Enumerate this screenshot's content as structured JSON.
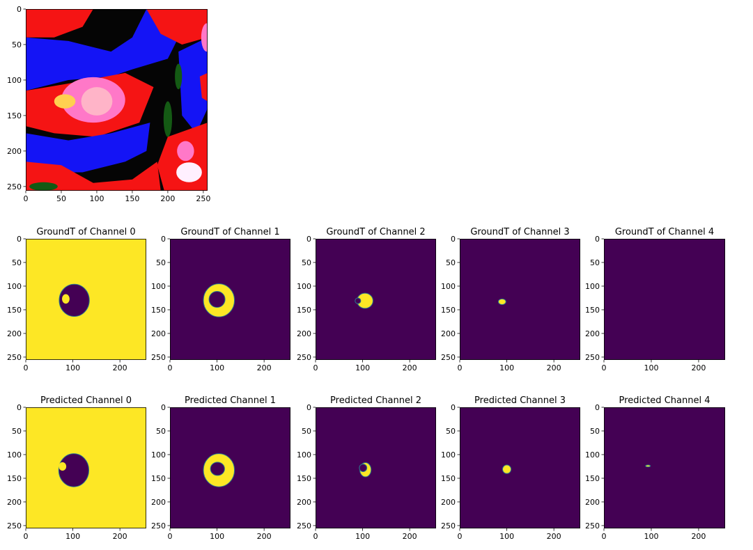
{
  "colors": {
    "viridis_low": "#440154",
    "viridis_high": "#fde725",
    "viridis_edge": "#2a788e",
    "image_blue": "#1414f5",
    "image_red": "#f51414",
    "image_black": "#050505",
    "image_pink": "#ff78c8",
    "image_white": "#fff0ff",
    "image_green": "#145a14"
  },
  "chart_data": [
    {
      "type": "heatmap",
      "id": "input",
      "content": "rgb-image",
      "xlim": [
        0,
        256
      ],
      "ylim": [
        256,
        0
      ],
      "x_ticks": [
        "0",
        "50",
        "100",
        "150",
        "200",
        "250"
      ],
      "y_ticks": [
        "0",
        "50",
        "100",
        "150",
        "200",
        "250"
      ],
      "icon": "image-tile-icon"
    },
    {
      "type": "heatmap",
      "id": "gt0",
      "title": "GroundT of Channel 0",
      "content": "mask-inverse",
      "mask": {
        "center": [
          103,
          130
        ],
        "radius": [
          32,
          34
        ]
      },
      "notch": {
        "center": [
          85,
          127
        ],
        "radius": [
          8,
          10
        ]
      },
      "xlim": [
        0,
        256
      ],
      "ylim": [
        256,
        0
      ],
      "x_ticks": [
        "0",
        "100",
        "200"
      ],
      "y_ticks": [
        "0",
        "50",
        "100",
        "150",
        "200",
        "250"
      ]
    },
    {
      "type": "heatmap",
      "id": "gt1",
      "title": "GroundT of Channel 1",
      "content": "ring",
      "mask": {
        "center": [
          104,
          130
        ],
        "radius": [
          33,
          35
        ]
      },
      "hole": {
        "center": [
          100,
          128
        ],
        "radius": [
          17,
          17
        ]
      },
      "xlim": [
        0,
        256
      ],
      "ylim": [
        256,
        0
      ],
      "x_ticks": [
        "0",
        "100",
        "200"
      ],
      "y_ticks": [
        "0",
        "50",
        "100",
        "150",
        "200",
        "250"
      ]
    },
    {
      "type": "heatmap",
      "id": "gt2",
      "title": "GroundT of Channel 2",
      "content": "blob-with-notch",
      "mask": {
        "center": [
          105,
          131
        ],
        "radius": [
          17,
          16
        ]
      },
      "notch": {
        "center": [
          90,
          131
        ],
        "radius": [
          6,
          6
        ]
      },
      "xlim": [
        0,
        256
      ],
      "ylim": [
        256,
        0
      ],
      "x_ticks": [
        "0",
        "100",
        "200"
      ],
      "y_ticks": [
        "0",
        "50",
        "100",
        "150",
        "200",
        "250"
      ]
    },
    {
      "type": "heatmap",
      "id": "gt3",
      "title": "GroundT of Channel 3",
      "content": "blob",
      "mask": {
        "center": [
          90,
          133
        ],
        "radius": [
          8,
          6
        ]
      },
      "xlim": [
        0,
        256
      ],
      "ylim": [
        256,
        0
      ],
      "x_ticks": [
        "0",
        "100",
        "200"
      ],
      "y_ticks": [
        "0",
        "50",
        "100",
        "150",
        "200",
        "250"
      ]
    },
    {
      "type": "heatmap",
      "id": "gt4",
      "title": "GroundT of Channel 4",
      "content": "empty",
      "xlim": [
        0,
        256
      ],
      "ylim": [
        256,
        0
      ],
      "x_ticks": [
        "0",
        "100",
        "200"
      ],
      "y_ticks": [
        "0",
        "50",
        "100",
        "150",
        "200",
        "250"
      ]
    },
    {
      "type": "heatmap",
      "id": "pr0",
      "title": "Predicted Channel 0",
      "content": "mask-inverse",
      "mask": {
        "center": [
          102,
          133
        ],
        "radius": [
          32,
          35
        ]
      },
      "notch": {
        "center": [
          78,
          125
        ],
        "radius": [
          8,
          9
        ]
      },
      "xlim": [
        0,
        256
      ],
      "ylim": [
        256,
        0
      ],
      "x_ticks": [
        "0",
        "100",
        "200"
      ],
      "y_ticks": [
        "0",
        "50",
        "100",
        "150",
        "200",
        "250"
      ]
    },
    {
      "type": "heatmap",
      "id": "pr1",
      "title": "Predicted Channel 1",
      "content": "ring",
      "mask": {
        "center": [
          104,
          133
        ],
        "radius": [
          33,
          35
        ]
      },
      "hole": {
        "center": [
          101,
          130
        ],
        "radius": [
          15,
          14
        ]
      },
      "xlim": [
        0,
        256
      ],
      "ylim": [
        256,
        0
      ],
      "x_ticks": [
        "0",
        "100",
        "200"
      ],
      "y_ticks": [
        "0",
        "50",
        "100",
        "150",
        "200",
        "250"
      ]
    },
    {
      "type": "heatmap",
      "id": "pr2",
      "title": "Predicted Channel 2",
      "content": "blob-with-notch",
      "mask": {
        "center": [
          106,
          132
        ],
        "radius": [
          12,
          15
        ]
      },
      "notch": {
        "center": [
          101,
          128
        ],
        "radius": [
          8,
          8
        ]
      },
      "xlim": [
        0,
        256
      ],
      "ylim": [
        256,
        0
      ],
      "x_ticks": [
        "0",
        "100",
        "200"
      ],
      "y_ticks": [
        "0",
        "50",
        "100",
        "150",
        "200",
        "250"
      ]
    },
    {
      "type": "heatmap",
      "id": "pr3",
      "title": "Predicted Channel 3",
      "content": "blob",
      "mask": {
        "center": [
          100,
          131
        ],
        "radius": [
          9,
          9
        ]
      },
      "xlim": [
        0,
        256
      ],
      "ylim": [
        256,
        0
      ],
      "x_ticks": [
        "0",
        "100",
        "200"
      ],
      "y_ticks": [
        "0",
        "50",
        "100",
        "150",
        "200",
        "250"
      ]
    },
    {
      "type": "heatmap",
      "id": "pr4",
      "title": "Predicted Channel 4",
      "content": "speck",
      "mask": {
        "center": [
          93,
          124
        ],
        "radius": [
          5,
          2
        ]
      },
      "xlim": [
        0,
        256
      ],
      "ylim": [
        256,
        0
      ],
      "x_ticks": [
        "0",
        "100",
        "200"
      ],
      "y_ticks": [
        "0",
        "50",
        "100",
        "150",
        "200",
        "250"
      ]
    }
  ]
}
